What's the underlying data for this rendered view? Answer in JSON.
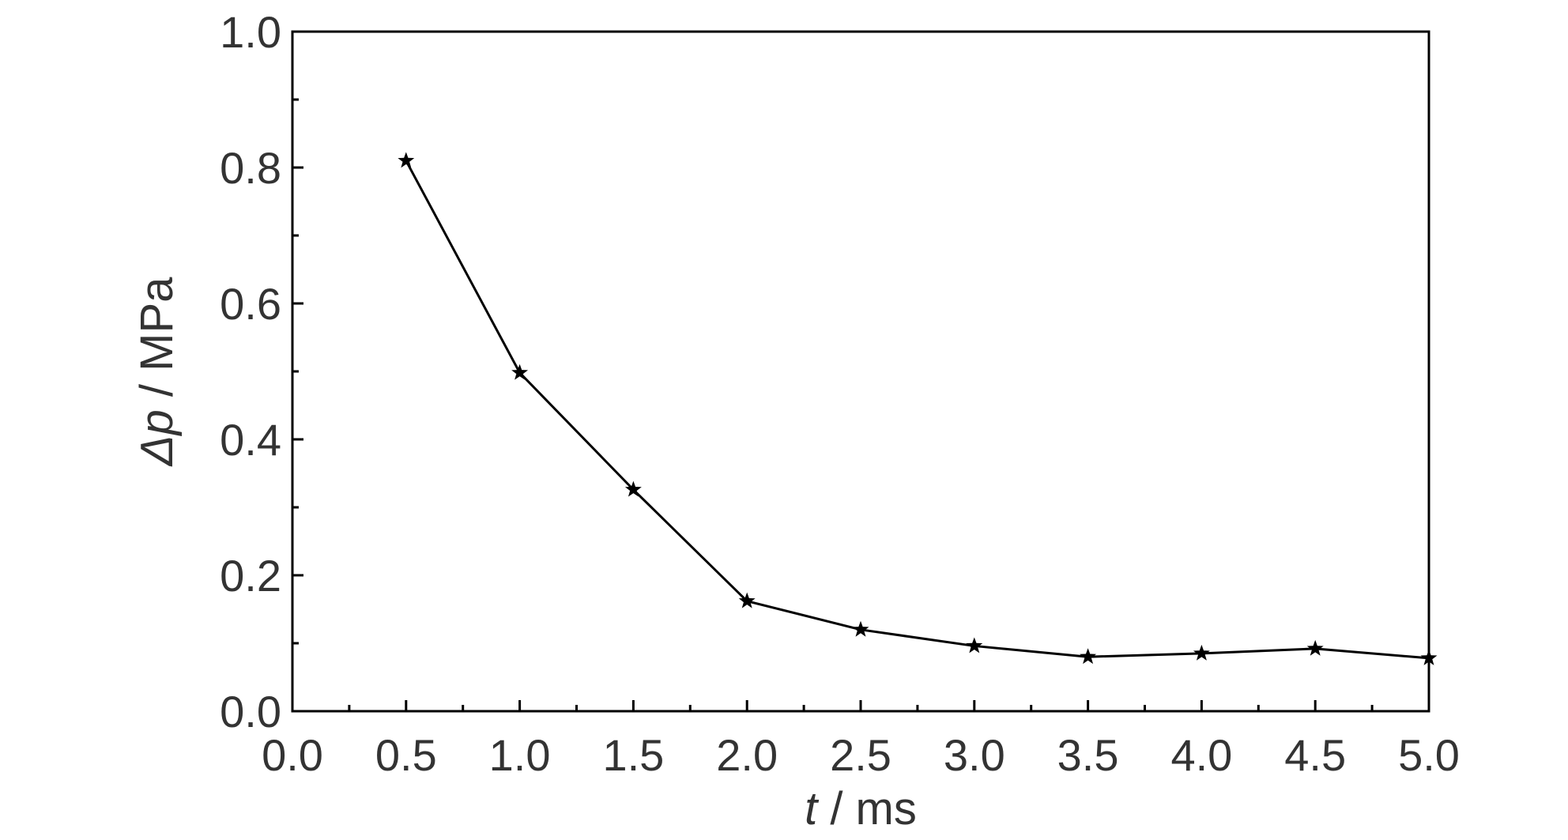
{
  "chart_data": {
    "type": "line",
    "xlabel_var": "t",
    "xlabel_unit": " / ms",
    "ylabel_var": "Δp",
    "ylabel_unit": " / MPa",
    "xlim": [
      0,
      5
    ],
    "ylim": [
      0,
      1
    ],
    "x_ticks": [
      "0.0",
      "0.5",
      "1.0",
      "1.5",
      "2.0",
      "2.5",
      "3.0",
      "3.5",
      "4.0",
      "4.5",
      "5.0"
    ],
    "y_ticks": [
      "0.0",
      "0.2",
      "0.4",
      "0.6",
      "0.8",
      "1.0"
    ],
    "grid": false,
    "legend": "none",
    "series": [
      {
        "marker": "star",
        "color": "#000000",
        "points": [
          {
            "x": 0.5,
            "y": 0.81
          },
          {
            "x": 1.0,
            "y": 0.498
          },
          {
            "x": 1.5,
            "y": 0.326
          },
          {
            "x": 2.0,
            "y": 0.162
          },
          {
            "x": 2.5,
            "y": 0.12
          },
          {
            "x": 3.0,
            "y": 0.096
          },
          {
            "x": 3.5,
            "y": 0.08
          },
          {
            "x": 4.0,
            "y": 0.085
          },
          {
            "x": 4.5,
            "y": 0.092
          },
          {
            "x": 5.0,
            "y": 0.078
          }
        ]
      }
    ]
  }
}
